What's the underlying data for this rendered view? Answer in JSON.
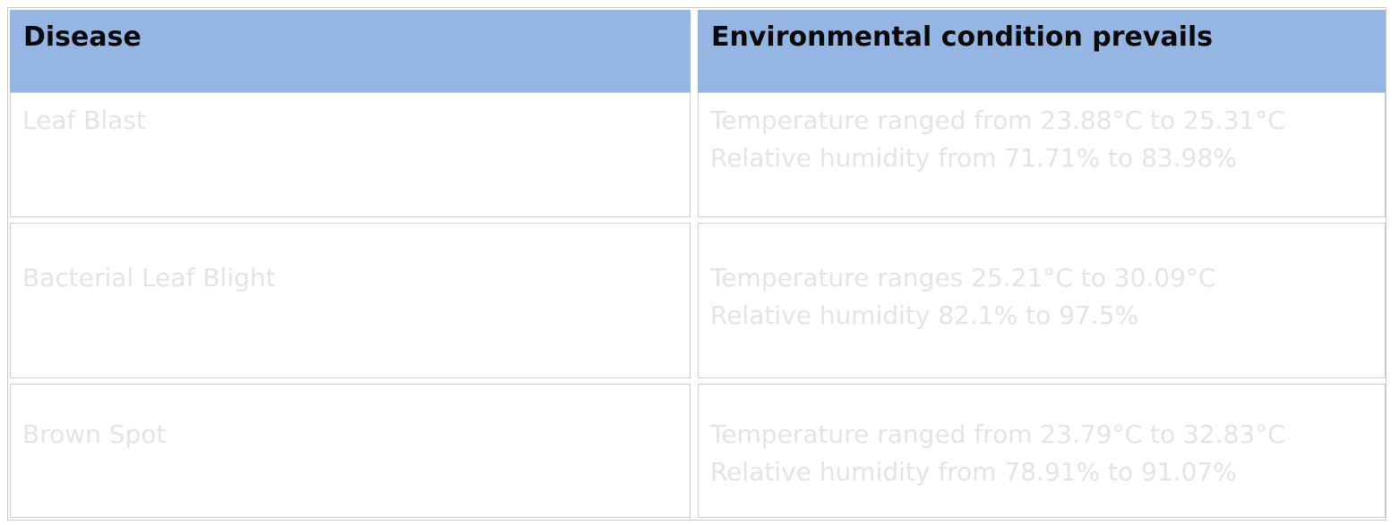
{
  "table": {
    "headers": [
      "Disease",
      "Environmental condition prevails"
    ],
    "rows": [
      {
        "disease": "Leaf Blast",
        "condition_lines": [
          "Temperature ranged from 23.88°C to 25.31°C",
          "Relative humidity from 71.71% to 83.98%"
        ]
      },
      {
        "disease": "Bacterial Leaf Blight",
        "condition_lines": [
          "Temperature ranges 25.21°C to 30.09°C",
          "Relative humidity 82.1% to 97.5%"
        ]
      },
      {
        "disease": "Brown Spot",
        "condition_lines": [
          "Temperature ranged from 23.79°C to 32.83°C",
          "Relative humidity from 78.91% to 91.07%"
        ]
      }
    ]
  },
  "colors": {
    "header_bg": "#95b6e3",
    "header_text": "#0a0a0a",
    "body_text": "#e4e4e4",
    "border": "#cfcfcf"
  }
}
